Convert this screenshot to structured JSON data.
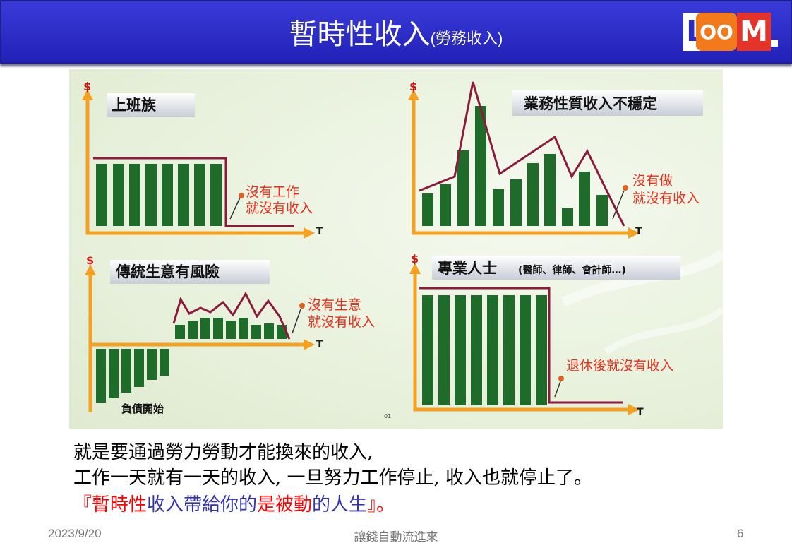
{
  "slide": {
    "title_main": "暫時性收入",
    "title_sub": "(勞務收入)",
    "logo": {
      "letters": [
        "L",
        "OO",
        "M"
      ]
    }
  },
  "figure": {
    "corner_mark": "01",
    "panels": [
      {
        "title": "上班族",
        "y_label": "$",
        "x_label": "T",
        "note_line1": "沒有工作",
        "note_line2": "就沒有收入"
      },
      {
        "title": "業務性質收入不穩定",
        "y_label": "$",
        "x_label": "T",
        "note_line1": "沒有做",
        "note_line2": "就沒有收入"
      },
      {
        "title": "傳統生意有風險",
        "y_label": "$",
        "x_label": "T",
        "note_line1": "沒有生意",
        "note_line2": "就沒有收入",
        "debt_label": "負債開始"
      },
      {
        "title": "專業人士",
        "title_sub": "(醫師、律師、會計師…)",
        "y_label": "$",
        "x_label": "T",
        "note_line1": "退休後就沒有收入"
      }
    ]
  },
  "caption": {
    "line1": "就是要通過勞力勞動才能換來的收入,",
    "line2": "工作一天就有一天的收入, 一旦努力工作停止, 收入也就停止了。",
    "line3_parts": [
      {
        "text": "『暫時性",
        "color": "#ff0000"
      },
      {
        "text": "收入帶給你的",
        "color": "#3333aa"
      },
      {
        "text": "是被動",
        "color": "#ff0000"
      },
      {
        "text": "的人生",
        "color": "#3333aa"
      },
      {
        "text": "』。",
        "color": "#ff0000"
      }
    ]
  },
  "footer": {
    "date": "2023/9/20",
    "center": "讓錢自動流進來",
    "page": "6"
  },
  "colors": {
    "title_bar": "#2a2ac8",
    "axis": "#f4a020",
    "bar": "#1f6b2a",
    "income_line": "#8b1a3c",
    "note_red": "#e8301e",
    "dot": "#e06020",
    "logo_orange": "#f27a1a",
    "logo_red": "#e3342a"
  }
}
